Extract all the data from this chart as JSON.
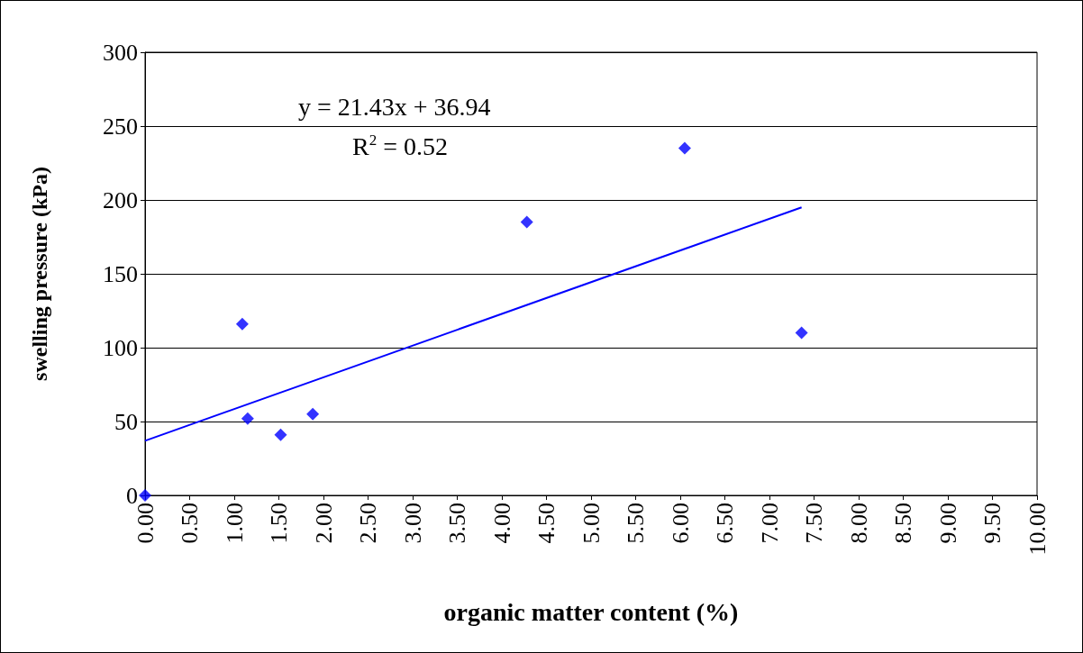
{
  "chart_data": {
    "type": "scatter",
    "xlabel": "organic matter content (%)",
    "ylabel": "swelling pressure (kPa)",
    "xlim": [
      0,
      10
    ],
    "xticks": [
      {
        "value": 0,
        "label": "0.00"
      },
      {
        "value": 0.5,
        "label": "0.50"
      },
      {
        "value": 1,
        "label": "1.00"
      },
      {
        "value": 1.5,
        "label": "1.50"
      },
      {
        "value": 2,
        "label": "2.00"
      },
      {
        "value": 2.5,
        "label": "2.50"
      },
      {
        "value": 3,
        "label": "3.00"
      },
      {
        "value": 3.5,
        "label": "3.50"
      },
      {
        "value": 4,
        "label": "4.00"
      },
      {
        "value": 4.5,
        "label": "4.50"
      },
      {
        "value": 5,
        "label": "5.00"
      },
      {
        "value": 5.5,
        "label": "5.50"
      },
      {
        "value": 6,
        "label": "6.00"
      },
      {
        "value": 6.5,
        "label": "6.50"
      },
      {
        "value": 7,
        "label": "7.00"
      },
      {
        "value": 7.5,
        "label": "7.50"
      },
      {
        "value": 8,
        "label": "8.00"
      },
      {
        "value": 8.5,
        "label": "8.50"
      },
      {
        "value": 9,
        "label": "9.00"
      },
      {
        "value": 9.5,
        "label": "9.50"
      },
      {
        "value": 10,
        "label": "10.00"
      }
    ],
    "ylim": [
      0,
      300
    ],
    "yticks": [
      0,
      50,
      100,
      150,
      200,
      250,
      300
    ],
    "grid": "y",
    "marker": "diamond",
    "series": [
      {
        "type": "scatter",
        "color": "#0000ff",
        "x": [
          0,
          1.09,
          1.15,
          1.52,
          1.88,
          4.28,
          6.05,
          7.36
        ],
        "values": [
          0,
          116,
          52,
          41,
          55,
          185,
          235,
          110
        ]
      },
      {
        "type": "line",
        "color": "#0000ff",
        "marker": "none",
        "x": [
          0,
          7.36
        ],
        "values": [
          37,
          195
        ]
      }
    ],
    "annotations": [
      "y = 21.43x + 36.94",
      "R$^{2}$ = 0.52"
    ]
  }
}
